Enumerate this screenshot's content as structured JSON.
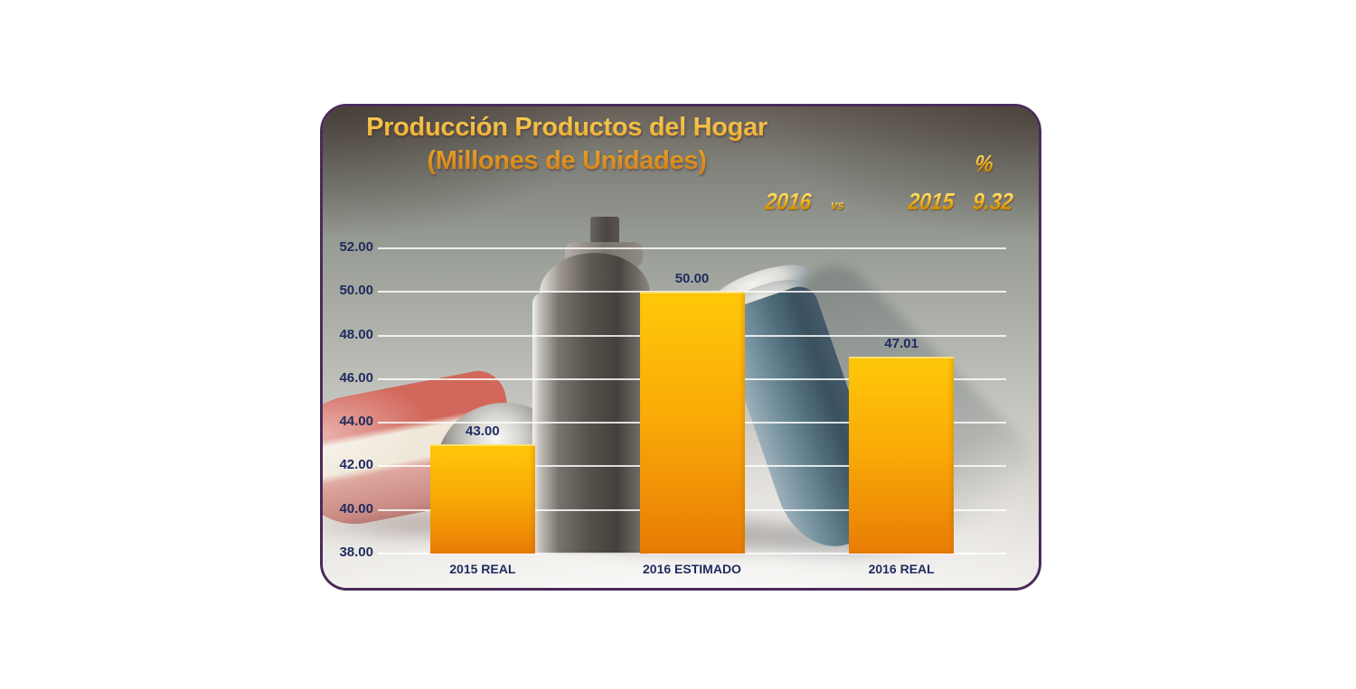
{
  "slide": {
    "title": {
      "line1": "Producción Productos del Hogar",
      "line2": "(Millones de Unidades)"
    },
    "comparison": {
      "year_left": "2016",
      "separator": "vs",
      "year_right": "2015",
      "percent_symbol": "%",
      "percent_value": "9.32"
    }
  },
  "chart_data": {
    "type": "bar",
    "title": "Producción Productos del Hogar (Millones de Unidades)",
    "categories": [
      "2015 REAL",
      "2016 ESTIMADO",
      "2016 REAL"
    ],
    "values": [
      43.0,
      50.0,
      47.01
    ],
    "value_labels": [
      "43.00",
      "50.00",
      "47.01"
    ],
    "yticks": [
      "52.00",
      "50.00",
      "48.00",
      "46.00",
      "44.00",
      "42.00",
      "40.00",
      "38.00"
    ],
    "ylim": [
      38,
      52
    ],
    "ytick_step": 2,
    "grid": true,
    "legend": false,
    "annotation": {
      "comparison": "2016 vs 2015",
      "growth_percent": 9.32
    }
  },
  "colors": {
    "bar_top": "#ffc808",
    "bar_mid": "#f9a907",
    "bar_bottom": "#e87c06",
    "label_navy": "#1f2b5e",
    "title_gold": "#eda928",
    "gold_text": "#f5c93c",
    "border_purple": "#4a2a5a",
    "gridline": "#ffffff"
  }
}
